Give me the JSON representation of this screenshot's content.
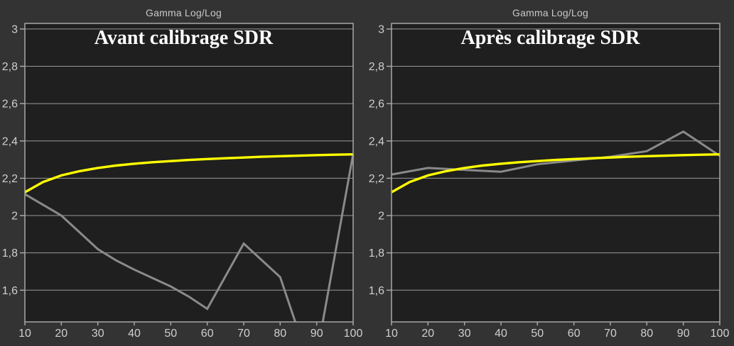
{
  "page": {
    "background": "#333333"
  },
  "palette": {
    "plot_background": "#1f1f1f",
    "grid_line": "#9a9a9a",
    "plot_border": "#a8a8a8",
    "tick_label": "#cfcfcf",
    "chart_title": "#c9c9c9",
    "overlay_title": "#ffffff",
    "reference_yellow": "#ffff00",
    "measured_gray": "#8a8a8a"
  },
  "chart_data": [
    {
      "type": "line",
      "title": "Gamma Log/Log",
      "overlay_title": "Avant calibrage SDR",
      "xlim": [
        10,
        100
      ],
      "ylim": [
        1.43,
        3.03
      ],
      "grid": "horizontal",
      "legend": "none",
      "x_tick_values": [
        10,
        20,
        30,
        40,
        50,
        60,
        70,
        80,
        90,
        100
      ],
      "x_tick_labels": [
        "10",
        "20",
        "30",
        "40",
        "50",
        "60",
        "70",
        "80",
        "90",
        "100"
      ],
      "y_tick_values": [
        3,
        2.8,
        2.6,
        2.4,
        2.2,
        2,
        1.8,
        1.6
      ],
      "y_tick_labels": [
        "3",
        "2,8",
        "2,6",
        "2,4",
        "2,2",
        "2",
        "1,8",
        "1,6"
      ],
      "series": [
        {
          "name": "measured-gamma",
          "color": "#8a8a8a",
          "stroke_width": 3,
          "x": [
            10,
            20,
            30,
            35,
            40,
            50,
            55,
            60,
            70,
            80,
            85,
            90,
            100
          ],
          "y": [
            2.115,
            2.0,
            1.82,
            1.76,
            1.71,
            1.62,
            1.565,
            1.5,
            1.85,
            1.67,
            1.38,
            1.25,
            2.33
          ]
        },
        {
          "name": "reference-gamma",
          "color": "#ffff00",
          "stroke_width": 3.4,
          "x": [
            10,
            15,
            20,
            25,
            30,
            35,
            40,
            45,
            50,
            55,
            60,
            65,
            70,
            75,
            80,
            85,
            90,
            95,
            100
          ],
          "y": [
            2.125,
            2.18,
            2.215,
            2.238,
            2.255,
            2.268,
            2.278,
            2.286,
            2.292,
            2.298,
            2.303,
            2.307,
            2.311,
            2.315,
            2.318,
            2.321,
            2.324,
            2.326,
            2.328
          ]
        }
      ]
    },
    {
      "type": "line",
      "title": "Gamma Log/Log",
      "overlay_title": "Après calibrage SDR",
      "xlim": [
        10,
        100
      ],
      "ylim": [
        1.43,
        3.03
      ],
      "grid": "horizontal",
      "legend": "none",
      "x_tick_values": [
        10,
        20,
        30,
        40,
        50,
        60,
        70,
        80,
        90,
        100
      ],
      "x_tick_labels": [
        "10",
        "20",
        "30",
        "40",
        "50",
        "60",
        "70",
        "80",
        "90",
        "100"
      ],
      "y_tick_values": [
        3,
        2.8,
        2.6,
        2.4,
        2.2,
        2,
        1.8,
        1.6
      ],
      "y_tick_labels": [
        "3",
        "2,8",
        "2,6",
        "2,4",
        "2,2",
        "2",
        "1,8",
        "1,6"
      ],
      "series": [
        {
          "name": "measured-gamma",
          "color": "#8a8a8a",
          "stroke_width": 3,
          "x": [
            10,
            20,
            30,
            40,
            50,
            60,
            70,
            80,
            90,
            100
          ],
          "y": [
            2.22,
            2.255,
            2.245,
            2.235,
            2.275,
            2.295,
            2.315,
            2.345,
            2.45,
            2.32
          ]
        },
        {
          "name": "reference-gamma",
          "color": "#ffff00",
          "stroke_width": 3.4,
          "x": [
            10,
            15,
            20,
            25,
            30,
            35,
            40,
            45,
            50,
            55,
            60,
            65,
            70,
            75,
            80,
            85,
            90,
            95,
            100
          ],
          "y": [
            2.125,
            2.18,
            2.215,
            2.238,
            2.255,
            2.268,
            2.278,
            2.286,
            2.292,
            2.298,
            2.303,
            2.307,
            2.311,
            2.315,
            2.318,
            2.321,
            2.324,
            2.326,
            2.328
          ]
        }
      ]
    }
  ]
}
